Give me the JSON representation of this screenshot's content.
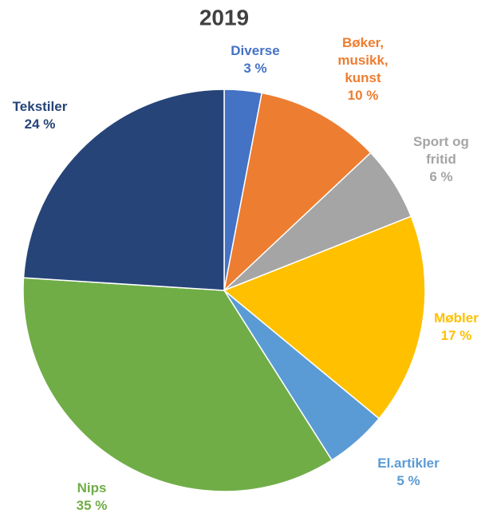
{
  "chart_data": {
    "type": "pie",
    "title": "2019",
    "categories": [
      "Diverse",
      "Bøker, musikk, kunst",
      "Sport og fritid",
      "Møbler",
      "El.artikler",
      "Nips",
      "Tekstiler"
    ],
    "values": [
      3,
      10,
      6,
      17,
      5,
      35,
      24
    ],
    "value_labels": [
      "3 %",
      "10 %",
      "6 %",
      "17 %",
      "5 %",
      "35 %",
      "24 %"
    ],
    "colors": [
      "#4472c4",
      "#ed7d31",
      "#a5a5a5",
      "#ffc000",
      "#5b9bd5",
      "#70ad47",
      "#264478"
    ]
  }
}
